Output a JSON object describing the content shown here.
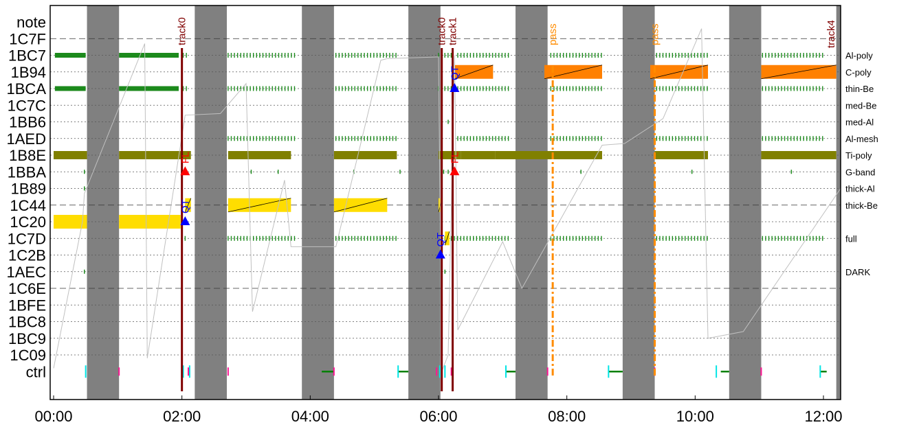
{
  "chart_data": {
    "type": "timeline",
    "x_ticks": [
      "00:00",
      "02:00",
      "04:00",
      "06:00",
      "08:00",
      "10:00",
      "12:00"
    ],
    "x_range_hours": [
      0,
      12.2
    ],
    "rows": [
      "note",
      "1C7F",
      "1BC7",
      "1B94",
      "1BCA",
      "1C7C",
      "1BB6",
      "1AED",
      "1B8E",
      "1BBA",
      "1B89",
      "1C44",
      "1C20",
      "1C7D",
      "1C2B",
      "1AEC",
      "1C6E",
      "1BFE",
      "1BC8",
      "1BC9",
      "1C09",
      "ctrl"
    ],
    "right_labels": [
      {
        "row": "1BC7",
        "text": "Al-poly"
      },
      {
        "row": "1B94",
        "text": "C-poly"
      },
      {
        "row": "1BCA",
        "text": "thin-Be"
      },
      {
        "row": "1C7C",
        "text": "med-Be"
      },
      {
        "row": "1BB6",
        "text": "med-Al"
      },
      {
        "row": "1AED",
        "text": "Al-mesh"
      },
      {
        "row": "1B8E",
        "text": "Ti-poly"
      },
      {
        "row": "1BBA",
        "text": "G-band"
      },
      {
        "row": "1B89",
        "text": "thick-Al"
      },
      {
        "row": "1C44",
        "text": "thick-Be"
      },
      {
        "row": "1C7D",
        "text": "full"
      },
      {
        "row": "1AEC",
        "text": "DARK"
      }
    ],
    "dashed_rows": [
      "1C7F",
      "1C44",
      "1C6E"
    ],
    "gray_intervals_h": [
      [
        0.52,
        1.02
      ],
      [
        2.2,
        2.7
      ],
      [
        3.87,
        4.37
      ],
      [
        5.53,
        6.03
      ],
      [
        7.2,
        7.7
      ],
      [
        8.87,
        9.37
      ],
      [
        10.53,
        11.03
      ],
      [
        12.2,
        12.4
      ]
    ],
    "green_tick_segments": [
      {
        "row": "1BC7",
        "ranges": [
          [
            0.02,
            0.5,
            "solid"
          ],
          [
            1.02,
            1.95,
            "solid"
          ],
          [
            2.02,
            2.08,
            "dots"
          ],
          [
            2.72,
            3.8,
            "dots"
          ],
          [
            4.4,
            5.35,
            "dots"
          ],
          [
            6.0,
            6.2,
            "dots"
          ],
          [
            6.3,
            7.1,
            "dots"
          ],
          [
            7.75,
            8.55,
            "dots"
          ],
          [
            9.4,
            10.2,
            "dots"
          ],
          [
            11.05,
            12.0,
            "dots"
          ]
        ]
      },
      {
        "row": "1BCA",
        "ranges": [
          [
            0.02,
            0.5,
            "solid"
          ],
          [
            1.02,
            1.95,
            "solid"
          ],
          [
            2.02,
            2.08,
            "dots"
          ],
          [
            2.72,
            3.8,
            "dots"
          ],
          [
            4.4,
            5.35,
            "dots"
          ],
          [
            6.0,
            6.2,
            "dots"
          ],
          [
            6.3,
            7.1,
            "dots"
          ],
          [
            7.75,
            8.55,
            "dots"
          ],
          [
            9.4,
            10.2,
            "dots"
          ],
          [
            11.05,
            12.0,
            "dots"
          ]
        ]
      },
      {
        "row": "1AED",
        "ranges": [
          [
            2.72,
            3.8,
            "dots"
          ],
          [
            4.4,
            5.35,
            "dots"
          ],
          [
            6.3,
            7.1,
            "dots"
          ],
          [
            7.75,
            8.55,
            "dots"
          ],
          [
            9.4,
            10.2,
            "dots"
          ],
          [
            11.05,
            12.0,
            "dots"
          ]
        ]
      },
      {
        "row": "1C7D",
        "ranges": [
          [
            2.05,
            2.08,
            "dots"
          ],
          [
            2.72,
            3.8,
            "dots"
          ],
          [
            4.4,
            5.35,
            "dots"
          ],
          [
            6.1,
            7.1,
            "dots"
          ],
          [
            7.75,
            8.55,
            "dots"
          ],
          [
            9.4,
            10.2,
            "dots"
          ],
          [
            11.05,
            12.0,
            "dots"
          ]
        ]
      }
    ],
    "single_marks": [
      {
        "row": "1BBA",
        "h": [
          0.48,
          2.05,
          3.08,
          3.5,
          4.68,
          5.4,
          6.08,
          6.15,
          8.22,
          9.95,
          11.5
        ]
      },
      {
        "row": "1B89",
        "h": [
          0.48
        ]
      },
      {
        "row": "1AEC",
        "h": [
          0.48,
          6.1
        ]
      },
      {
        "row": "1BB6",
        "h": [
          6.15
        ]
      }
    ],
    "ti_poly_bars_h": [
      [
        0.0,
        0.52
      ],
      [
        1.02,
        2.14
      ],
      [
        2.72,
        3.7
      ],
      [
        4.37,
        5.35
      ],
      [
        6.0,
        6.35
      ],
      [
        6.35,
        6.88
      ],
      [
        6.88,
        8.55
      ],
      [
        9.37,
        10.2
      ],
      [
        11.03,
        12.2
      ]
    ],
    "bars": [
      {
        "row": "1C20",
        "color": "#ffdd00",
        "start_h": 0.0,
        "end_h": 0.52,
        "diag": false
      },
      {
        "row": "1C20",
        "color": "#ffdd00",
        "start_h": 1.02,
        "end_h": 1.98,
        "diag": false
      },
      {
        "row": "1C44",
        "color": "#ffdd00",
        "start_h": 2.05,
        "end_h": 2.14,
        "diag": true
      },
      {
        "row": "1C44",
        "color": "#ffdd00",
        "start_h": 2.72,
        "end_h": 3.7,
        "diag": true
      },
      {
        "row": "1C44",
        "color": "#ffdd00",
        "start_h": 4.37,
        "end_h": 5.2,
        "diag": true
      },
      {
        "row": "1C44",
        "color": "#ffdd00",
        "start_h": 6.0,
        "end_h": 6.06,
        "diag": true
      },
      {
        "row": "1C7D",
        "color": "#ffdd00",
        "start_h": 6.1,
        "end_h": 6.17,
        "diag": true
      },
      {
        "row": "1B94",
        "color": "#ff8000",
        "start_h": 6.25,
        "end_h": 6.85,
        "diag": true
      },
      {
        "row": "1B94",
        "color": "#ff8000",
        "start_h": 7.65,
        "end_h": 8.55,
        "diag": true
      },
      {
        "row": "1B94",
        "color": "#ff8000",
        "start_h": 9.3,
        "end_h": 10.2,
        "diag": true
      },
      {
        "row": "1B94",
        "color": "#ff8000",
        "start_h": 11.03,
        "end_h": 12.2,
        "diag": true
      }
    ],
    "tracks": [
      {
        "label": "track0",
        "h": 2.0,
        "full": true
      },
      {
        "label": "track0",
        "h": 6.05,
        "full": true
      },
      {
        "label": "track1",
        "h": 6.22,
        "full": true
      },
      {
        "label": "track4",
        "h": 12.2,
        "full": false
      }
    ],
    "passes": [
      {
        "label": "pass",
        "h": 7.78
      },
      {
        "label": "pass",
        "h": 9.37
      }
    ],
    "markers": [
      {
        "label": "QT",
        "label_color": "#0000ff",
        "tri_color": "#0000ff",
        "h": 2.05,
        "row": "1C20"
      },
      {
        "label": "FL",
        "label_color": "#ff0000",
        "tri_color": "#ff0000",
        "h": 2.05,
        "row": "1BBA"
      },
      {
        "label": "QT",
        "label_color": "#0000ff",
        "tri_color": "#0000ff",
        "h": 6.03,
        "row": "1C2B"
      },
      {
        "label": "FL",
        "label_color": "#ff0000",
        "tri_color": "#ff0000",
        "h": 6.25,
        "row": "1BBA"
      },
      {
        "label": "QT",
        "label_color": "#0000ff",
        "tri_color": "#0000ff",
        "h": 6.25,
        "row": "1BCA"
      }
    ],
    "ctrl_segments_h": [
      [
        4.18,
        4.37
      ],
      [
        5.37,
        5.53
      ],
      [
        7.05,
        7.2
      ],
      [
        8.65,
        8.87
      ],
      [
        10.4,
        10.53
      ],
      [
        11.95,
        12.05
      ]
    ],
    "ctrl_cyan_ticks_h": [
      0.5,
      2.02,
      2.12,
      5.37,
      6.02,
      6.1,
      7.05,
      8.65,
      10.33,
      11.95
    ],
    "ctrl_magenta_ticks_h": [
      1.02,
      2.1,
      2.72,
      4.37,
      5.97,
      6.2,
      7.7,
      9.37,
      11.03
    ],
    "gray_line_points": [
      [
        0.0,
        20.8
      ],
      [
        0.45,
        12.0
      ],
      [
        0.48,
        10.3
      ],
      [
        1.42,
        1.3
      ],
      [
        1.46,
        20.2
      ],
      [
        2.05,
        5.6
      ],
      [
        2.6,
        5.5
      ],
      [
        3.0,
        3.7
      ],
      [
        3.1,
        17.4
      ],
      [
        3.6,
        9.5
      ],
      [
        3.7,
        13.5
      ],
      [
        4.4,
        13.5
      ],
      [
        5.1,
        2.3
      ],
      [
        5.2,
        2.2
      ],
      [
        6.0,
        2.1
      ],
      [
        6.05,
        21.0
      ],
      [
        6.15,
        20.0
      ],
      [
        6.25,
        2.0
      ],
      [
        6.3,
        18.5
      ],
      [
        7.0,
        13.2
      ],
      [
        7.3,
        16.0
      ],
      [
        8.55,
        7.4
      ],
      [
        8.9,
        7.3
      ],
      [
        9.5,
        5.8
      ],
      [
        10.1,
        0.4
      ],
      [
        10.2,
        19.0
      ],
      [
        10.75,
        18.6
      ],
      [
        12.3,
        10.0
      ]
    ],
    "palette": {
      "green_tick": "#1c8a1c",
      "ti_poly": "#808000",
      "yellow": "#ffdd00",
      "orange": "#ff8000",
      "gray_band": "#808080",
      "track": "#800000",
      "pass": "#ff8c00",
      "cyan": "#00e5e5",
      "magenta": "#ff1493",
      "ctrl_green": "#008000",
      "gray_line": "#c0c0c0"
    }
  }
}
